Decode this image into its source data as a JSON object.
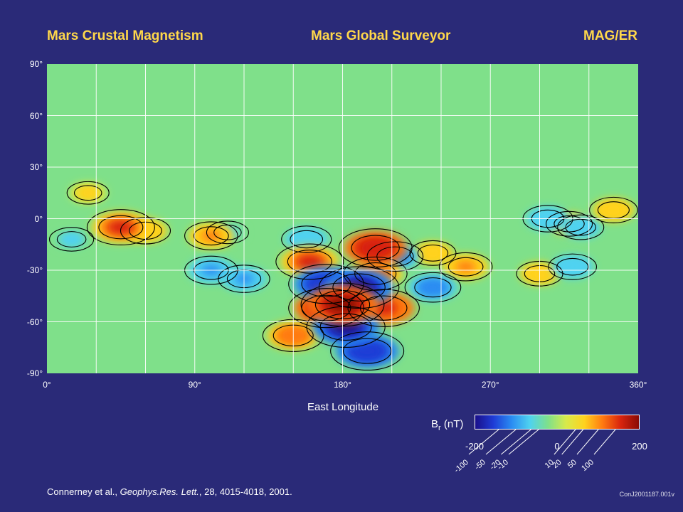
{
  "header": {
    "left_title": "Mars Crustal Magnetism",
    "center_title": "Mars Global Surveyor",
    "right_title": "MAG/ER"
  },
  "chart_data": {
    "type": "heatmap",
    "xlabel": "East Longitude",
    "ylabel": "",
    "xlim": [
      0,
      360
    ],
    "ylim": [
      -90,
      90
    ],
    "x_ticks": [
      "0°",
      "90°",
      "180°",
      "270°",
      "360°"
    ],
    "x_tick_values": [
      0,
      90,
      180,
      270,
      360
    ],
    "y_ticks": [
      "90°",
      "60°",
      "30°",
      "0°",
      "-30°",
      "-60°",
      "-90°"
    ],
    "y_tick_values": [
      90,
      60,
      30,
      0,
      -30,
      -60,
      -90
    ],
    "grid": true,
    "grid_step_degrees": 30,
    "colorbar": {
      "label": "Br (nT)",
      "label_main": "B",
      "label_sub": "r",
      "label_unit": " (nT)",
      "range": [
        -200,
        200
      ],
      "ticks_top": [
        "-200",
        "0",
        "200"
      ],
      "ticks_top_values": [
        -200,
        0,
        200
      ],
      "ticks_angled": [
        "-100",
        "-50",
        "-20",
        "-10",
        "10",
        "20",
        "50",
        "100"
      ],
      "ticks_angled_values": [
        -100,
        -50,
        -20,
        -10,
        10,
        20,
        50,
        100
      ],
      "colors": [
        "#1a0f8a",
        "#1f3cd6",
        "#2a8cf2",
        "#4fd2f0",
        "#7fe08a",
        "#d8ea4a",
        "#ffd21e",
        "#ff7a10",
        "#d8240e",
        "#8a0a06"
      ]
    },
    "anomalies_nT": [
      {
        "lon": 180,
        "lat": -50,
        "value": 200
      },
      {
        "lon": 190,
        "lat": -40,
        "value": -180
      },
      {
        "lon": 182,
        "lat": -63,
        "value": -170
      },
      {
        "lon": 170,
        "lat": -52,
        "value": 150
      },
      {
        "lon": 205,
        "lat": -52,
        "value": 130
      },
      {
        "lon": 170,
        "lat": -38,
        "value": -150
      },
      {
        "lon": 195,
        "lat": -77,
        "value": -140
      },
      {
        "lon": 150,
        "lat": -68,
        "value": 80
      },
      {
        "lon": 200,
        "lat": -17,
        "value": 140
      },
      {
        "lon": 160,
        "lat": -25,
        "value": 110
      },
      {
        "lon": 200,
        "lat": -32,
        "value": 90
      },
      {
        "lon": 212,
        "lat": -22,
        "value": -60
      },
      {
        "lon": 45,
        "lat": -5,
        "value": 110
      },
      {
        "lon": 60,
        "lat": -7,
        "value": 40
      },
      {
        "lon": 100,
        "lat": -10,
        "value": 50
      },
      {
        "lon": 100,
        "lat": -30,
        "value": -50
      },
      {
        "lon": 120,
        "lat": -35,
        "value": -45
      },
      {
        "lon": 235,
        "lat": -40,
        "value": -60
      },
      {
        "lon": 235,
        "lat": -20,
        "value": 30
      },
      {
        "lon": 255,
        "lat": -28,
        "value": 50
      },
      {
        "lon": 158,
        "lat": -12,
        "value": -40
      },
      {
        "lon": 305,
        "lat": 0,
        "value": -40
      },
      {
        "lon": 318,
        "lat": -3,
        "value": 30
      },
      {
        "lon": 325,
        "lat": -5,
        "value": -30
      },
      {
        "lon": 345,
        "lat": 5,
        "value": 35
      },
      {
        "lon": 300,
        "lat": -32,
        "value": 30
      },
      {
        "lon": 320,
        "lat": -28,
        "value": -35
      },
      {
        "lon": 25,
        "lat": 15,
        "value": 20
      },
      {
        "lon": 15,
        "lat": -12,
        "value": -25
      },
      {
        "lon": 110,
        "lat": -8,
        "value": -20
      }
    ]
  },
  "citation": {
    "authors": "Connerney et al., ",
    "journal": "Geophys.Res. Lett.",
    "details": ", 28, 4015-4018, 2001."
  },
  "image_code": "ConJ2001187.001v"
}
